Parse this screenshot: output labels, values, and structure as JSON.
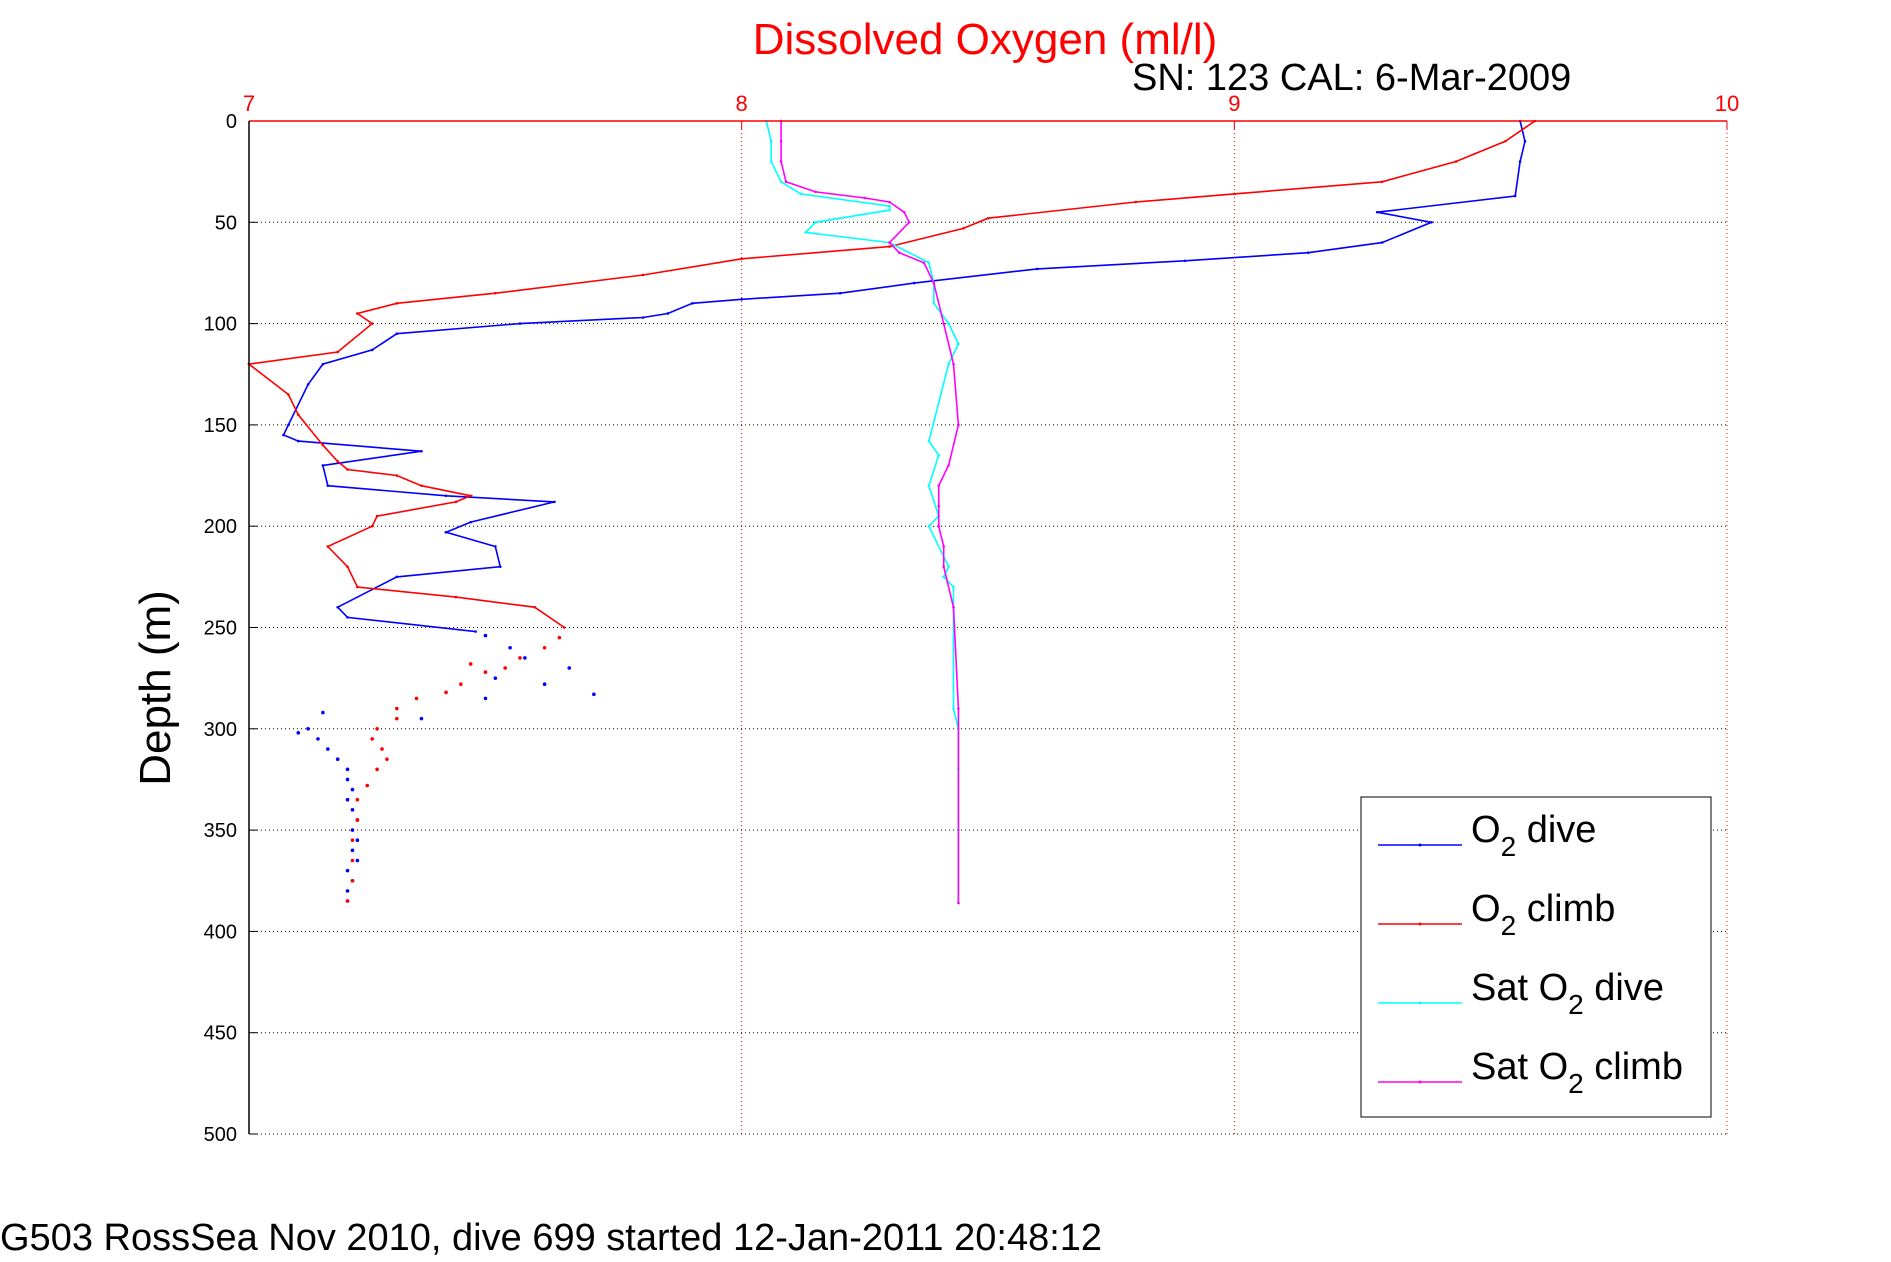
{
  "chart_data": {
    "type": "line",
    "title": "Dissolved Oxygen (ml/l)",
    "subtitle": "SN: 123  CAL: 6-Mar-2009",
    "xlabel": "",
    "ylabel": "Depth (m)",
    "footer": "G503 RossSea Nov 2010, dive 699 started 12-Jan-2011 20:48:12",
    "xlim": [
      7,
      10
    ],
    "ylim": [
      0,
      500
    ],
    "y_reversed": true,
    "x_axis_position": "top",
    "x_ticks": [
      "7",
      "8",
      "9",
      "10"
    ],
    "y_ticks": [
      "0",
      "50",
      "100",
      "150",
      "200",
      "250",
      "300",
      "350",
      "400",
      "450",
      "500"
    ],
    "grid": true,
    "legend_position": "bottom-right",
    "colors": {
      "o2_dive": "#0000ff",
      "o2_climb": "#ff0000",
      "sat_dive": "#00ffff",
      "sat_climb": "#ff00ff",
      "x_axis": "#ff0000",
      "grid": "#000000"
    },
    "series": [
      {
        "key": "o2_dive",
        "legend": {
          "prefix": "O",
          "sub": "2",
          "suffix": " dive"
        },
        "x": [
          9.58,
          9.59,
          9.58,
          9.57,
          9.29,
          9.4,
          9.3,
          9.15,
          8.9,
          8.6,
          8.35,
          8.2,
          8.0,
          7.9,
          7.85,
          7.8,
          7.55,
          7.3,
          7.25,
          7.15,
          7.12,
          7.08,
          7.07,
          7.1,
          7.35,
          7.15,
          7.16,
          7.4,
          7.62,
          7.45,
          7.4,
          7.5,
          7.51,
          7.3,
          7.18,
          7.2,
          7.46
        ],
        "y": [
          0,
          10,
          20,
          37,
          45,
          50,
          60,
          65,
          69,
          73,
          80,
          85,
          88,
          90,
          95,
          97,
          100,
          105,
          113,
          120,
          130,
          150,
          155,
          158,
          163,
          170,
          180,
          185,
          188,
          198,
          203,
          210,
          220,
          225,
          240,
          245,
          252
        ]
      },
      {
        "key": "o2_climb",
        "legend": {
          "prefix": "O",
          "sub": "2",
          "suffix": " climb"
        },
        "x": [
          9.61,
          9.55,
          9.45,
          9.3,
          9.0,
          8.8,
          8.5,
          8.45,
          8.3,
          8.0,
          7.8,
          7.5,
          7.3,
          7.22,
          7.25,
          7.18,
          7.0,
          7.08,
          7.1,
          7.15,
          7.18,
          7.2,
          7.3,
          7.35,
          7.45,
          7.42,
          7.26,
          7.25,
          7.16,
          7.2,
          7.22,
          7.42,
          7.58,
          7.64
        ],
        "y": [
          0,
          10,
          20,
          30,
          36,
          40,
          48,
          53,
          62,
          68,
          76,
          85,
          90,
          95,
          100,
          114,
          120,
          135,
          145,
          160,
          168,
          172,
          175,
          180,
          185,
          188,
          195,
          200,
          210,
          220,
          230,
          235,
          240,
          250
        ]
      },
      {
        "key": "sat_dive",
        "legend": {
          "prefix": "Sat O",
          "sub": "2",
          "suffix": " dive"
        },
        "x": [
          8.05,
          8.06,
          8.06,
          8.08,
          8.12,
          8.3,
          8.3,
          8.15,
          8.13,
          8.3,
          8.38,
          8.39,
          8.39,
          8.42,
          8.44,
          8.42,
          8.38,
          8.4,
          8.38,
          8.4,
          8.38,
          8.42,
          8.41,
          8.43,
          8.43,
          8.43,
          8.44,
          8.44,
          8.44,
          8.44
        ],
        "y": [
          0,
          10,
          20,
          30,
          36,
          42,
          44,
          50,
          55,
          60,
          70,
          80,
          90,
          100,
          110,
          120,
          158,
          165,
          180,
          195,
          200,
          220,
          225,
          230,
          240,
          290,
          300,
          320,
          350,
          386
        ]
      },
      {
        "key": "sat_climb",
        "legend": {
          "prefix": "Sat O",
          "sub": "2",
          "suffix": " climb"
        },
        "x": [
          8.08,
          8.08,
          8.08,
          8.09,
          8.15,
          8.25,
          8.3,
          8.33,
          8.34,
          8.3,
          8.32,
          8.37,
          8.39,
          8.41,
          8.43,
          8.44,
          8.42,
          8.4,
          8.4,
          8.4,
          8.41,
          8.41,
          8.43,
          8.44,
          8.44
        ],
        "y": [
          0,
          10,
          20,
          30,
          35,
          38,
          40,
          45,
          50,
          60,
          65,
          70,
          80,
          100,
          120,
          150,
          170,
          180,
          190,
          200,
          210,
          220,
          240,
          290,
          386
        ]
      }
    ],
    "scatter_series": [
      {
        "key": "o2_dive",
        "points": [
          [
            7.48,
            254
          ],
          [
            7.53,
            260
          ],
          [
            7.56,
            265
          ],
          [
            7.65,
            270
          ],
          [
            7.5,
            275
          ],
          [
            7.6,
            278
          ],
          [
            7.48,
            285
          ],
          [
            7.7,
            283
          ],
          [
            7.35,
            295
          ],
          [
            7.15,
            292
          ],
          [
            7.12,
            300
          ],
          [
            7.1,
            302
          ],
          [
            7.14,
            305
          ],
          [
            7.16,
            310
          ],
          [
            7.18,
            315
          ],
          [
            7.2,
            320
          ],
          [
            7.2,
            325
          ],
          [
            7.21,
            330
          ],
          [
            7.2,
            335
          ],
          [
            7.21,
            340
          ],
          [
            7.22,
            345
          ],
          [
            7.21,
            350
          ],
          [
            7.22,
            355
          ],
          [
            7.21,
            360
          ],
          [
            7.22,
            365
          ],
          [
            7.2,
            370
          ],
          [
            7.21,
            375
          ],
          [
            7.2,
            380
          ],
          [
            7.2,
            385
          ]
        ]
      },
      {
        "key": "o2_climb",
        "points": [
          [
            7.63,
            255
          ],
          [
            7.6,
            260
          ],
          [
            7.55,
            265
          ],
          [
            7.52,
            270
          ],
          [
            7.45,
            268
          ],
          [
            7.48,
            272
          ],
          [
            7.43,
            278
          ],
          [
            7.4,
            282
          ],
          [
            7.34,
            285
          ],
          [
            7.3,
            290
          ],
          [
            7.3,
            295
          ],
          [
            7.26,
            300
          ],
          [
            7.25,
            305
          ],
          [
            7.27,
            310
          ],
          [
            7.28,
            315
          ],
          [
            7.26,
            320
          ],
          [
            7.24,
            328
          ],
          [
            7.22,
            335
          ],
          [
            7.22,
            345
          ],
          [
            7.21,
            355
          ],
          [
            7.21,
            365
          ],
          [
            7.21,
            375
          ],
          [
            7.2,
            385
          ]
        ]
      }
    ]
  }
}
